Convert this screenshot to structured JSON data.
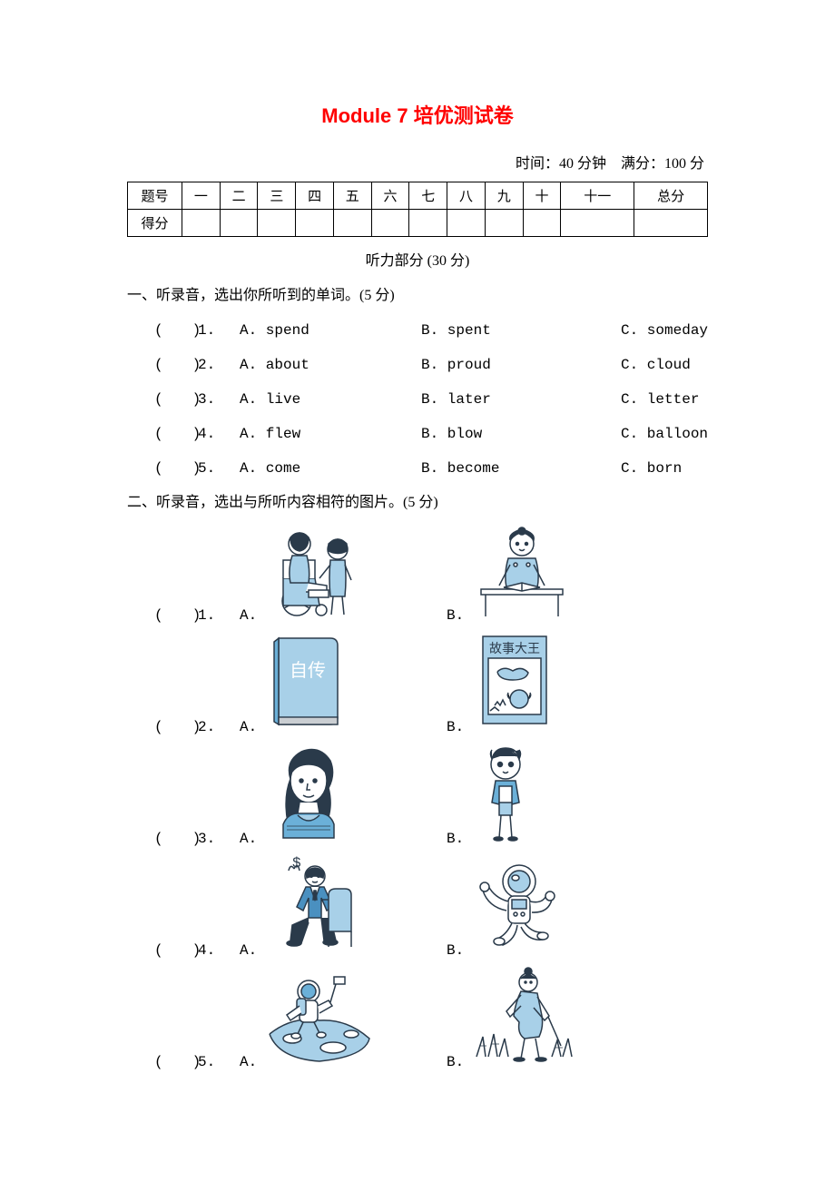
{
  "title": "Module 7 培优测试卷",
  "meta": "时间：40 分钟　满分：100 分",
  "score_table": {
    "header_label": "题号",
    "score_label": "得分",
    "columns": [
      "一",
      "二",
      "三",
      "四",
      "五",
      "六",
      "七",
      "八",
      "九",
      "十",
      "十一",
      "总分"
    ]
  },
  "listening_header": "听力部分 (30 分)",
  "section1": {
    "title": "一、听录音，选出你所听到的单词。(5 分)",
    "items": [
      {
        "num": "1.",
        "a": "A. spend",
        "b": "B. spent",
        "c": "C. someday"
      },
      {
        "num": "2.",
        "a": "A. about",
        "b": "B. proud",
        "c": "C. cloud"
      },
      {
        "num": "3.",
        "a": "A. live",
        "b": "B. later",
        "c": "C. letter"
      },
      {
        "num": "4.",
        "a": "A. flew",
        "b": "B. blow",
        "c": "C. balloon"
      },
      {
        "num": "5.",
        "a": "A. come",
        "b": "B. become",
        "c": "C. born"
      }
    ]
  },
  "section2": {
    "title": "二、听录音，选出与所听内容相符的图片。(5 分)",
    "items": [
      {
        "num": "1.",
        "a": "A.",
        "b": "B.",
        "img_a": "wheelchair-kids",
        "img_b": "girl-desk"
      },
      {
        "num": "2.",
        "a": "A.",
        "b": "B.",
        "img_a": "book-zizhuan",
        "img_b": "book-gushi"
      },
      {
        "num": "3.",
        "a": "A.",
        "b": "B.",
        "img_a": "woman-portrait",
        "img_b": "boy-standing"
      },
      {
        "num": "4.",
        "a": "A.",
        "b": "B.",
        "img_a": "man-money",
        "img_b": "astronaut"
      },
      {
        "num": "5.",
        "a": "A.",
        "b": "B.",
        "img_a": "astronaut-moon",
        "img_b": "girl-farming"
      }
    ]
  },
  "paren": "(",
  "paren_close": ")",
  "book_labels": {
    "zizhuan": "自传",
    "gushi": "故事大王"
  },
  "colors": {
    "title": "#ff0000",
    "text": "#000000",
    "svg_stroke": "#2a3a4a",
    "svg_fill_light": "#a8d0e8",
    "svg_fill_mid": "#6bb0d8",
    "svg_fill_dark": "#4a90c0",
    "svg_bg": "#ffffff"
  }
}
